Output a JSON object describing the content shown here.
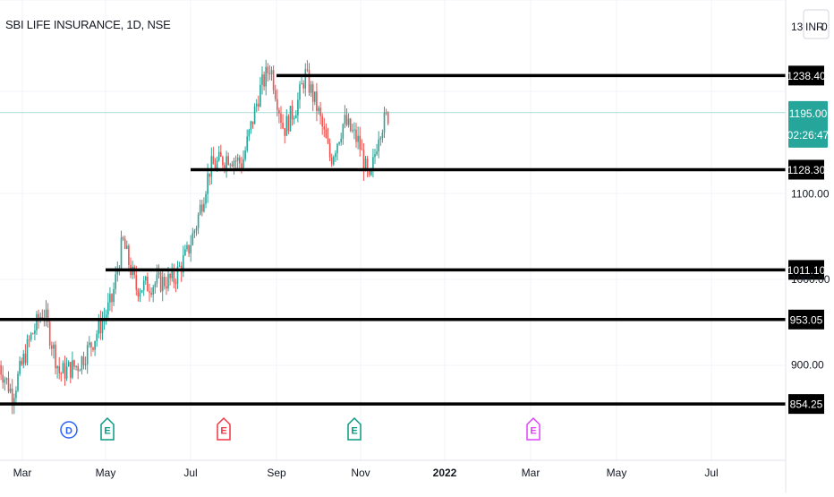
{
  "header": {
    "symbol_title": "SBI LIFE INSURANCE, 1D, NSE",
    "currency_label": "INR",
    "currency_value": "0",
    "partial_label": "13"
  },
  "price_tag": {
    "price": "1195.00",
    "countdown": "02:26:47",
    "color": "#26a69a"
  },
  "chart_data": {
    "type": "candlestick",
    "symbol": "SBI LIFE INSURANCE",
    "interval": "1D",
    "exchange": "NSE",
    "y_axis_ticks": [
      "1100.00",
      "1000.00",
      "900.00"
    ],
    "x_axis_ticks": [
      "Mar",
      "May",
      "Jul",
      "Sep",
      "Nov",
      "2022",
      "Mar",
      "May",
      "Jul"
    ],
    "ylim": [
      830,
      1300
    ],
    "horizontal_levels": [
      {
        "value": 1238.4,
        "label": "1238.40",
        "from": "Sep"
      },
      {
        "value": 1128.3,
        "label": "1128.30",
        "from": "Jul"
      },
      {
        "value": 1011.1,
        "label": "1011.10",
        "from": "May"
      },
      {
        "value": 953.05,
        "label": "953.05",
        "from": "Feb"
      },
      {
        "value": 854.25,
        "label": "854.25",
        "from": "Feb"
      }
    ],
    "last_price": 1195.0,
    "event_markers": [
      {
        "type": "D",
        "near": "Mar",
        "color": "#2962ff"
      },
      {
        "type": "E",
        "near": "May",
        "color": "#089981"
      },
      {
        "type": "E",
        "near": "Jul",
        "color": "#f23645"
      },
      {
        "type": "E",
        "near": "Nov",
        "color": "#089981"
      },
      {
        "type": "E",
        "near": "Mar",
        "color": "#e040fb"
      }
    ],
    "up_color": "#26a69a",
    "down_color": "#ef5350",
    "price_path": [
      {
        "date": "2021-02-15",
        "close": 900
      },
      {
        "date": "2021-02-25",
        "close": 865
      },
      {
        "date": "2021-03-10",
        "close": 930
      },
      {
        "date": "2021-03-20",
        "close": 965
      },
      {
        "date": "2021-04-01",
        "close": 890
      },
      {
        "date": "2021-04-15",
        "close": 900
      },
      {
        "date": "2021-04-25",
        "close": 925
      },
      {
        "date": "2021-05-10",
        "close": 975
      },
      {
        "date": "2021-05-18",
        "close": 1045
      },
      {
        "date": "2021-05-28",
        "close": 990
      },
      {
        "date": "2021-06-10",
        "close": 995
      },
      {
        "date": "2021-06-25",
        "close": 1000
      },
      {
        "date": "2021-07-05",
        "close": 1030
      },
      {
        "date": "2021-07-12",
        "close": 1065
      },
      {
        "date": "2021-07-22",
        "close": 1130
      },
      {
        "date": "2021-08-05",
        "close": 1145
      },
      {
        "date": "2021-08-15",
        "close": 1135
      },
      {
        "date": "2021-08-28",
        "close": 1220
      },
      {
        "date": "2021-09-05",
        "close": 1250
      },
      {
        "date": "2021-09-15",
        "close": 1175
      },
      {
        "date": "2021-09-25",
        "close": 1205
      },
      {
        "date": "2021-10-01",
        "close": 1240
      },
      {
        "date": "2021-10-10",
        "close": 1200
      },
      {
        "date": "2021-10-20",
        "close": 1140
      },
      {
        "date": "2021-10-30",
        "close": 1185
      },
      {
        "date": "2021-11-10",
        "close": 1160
      },
      {
        "date": "2021-11-18",
        "close": 1110
      },
      {
        "date": "2021-11-25",
        "close": 1175
      },
      {
        "date": "2021-12-03",
        "close": 1195
      }
    ]
  }
}
